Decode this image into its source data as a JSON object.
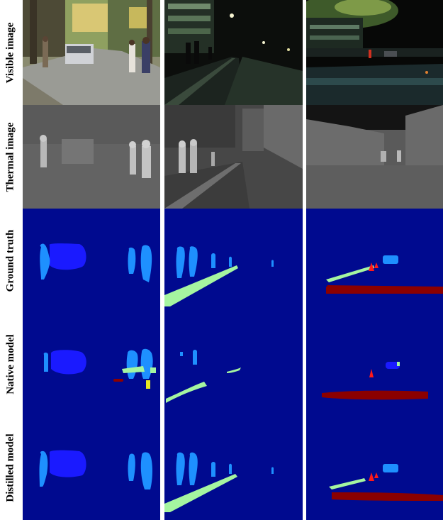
{
  "row_labels": {
    "visible": "Visible image",
    "thermal": "Thermal image",
    "ground_truth": "Ground truth",
    "native": "Native model",
    "distilled": "Distilled model"
  },
  "colors": {
    "background_class": "#000a8f",
    "person": "#1e90ff",
    "car": "#1a1aff",
    "curve": "#a5f5a0",
    "bump": "#8b0000",
    "cone": "#ff1a1a"
  }
}
